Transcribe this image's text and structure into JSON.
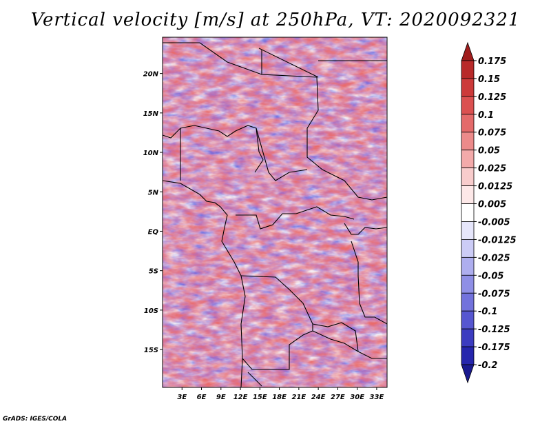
{
  "title": "Vertical velocity [m/s] at 250hPa, VT: 2020092321",
  "credit": "GrADS: IGES/COLA",
  "map": {
    "lat_labels": [
      "20N",
      "15N",
      "10N",
      "5N",
      "EQ",
      "5S",
      "10S",
      "15S"
    ],
    "lat_values": [
      20,
      15,
      10,
      5,
      0,
      -5,
      -10,
      -15
    ],
    "lon_labels": [
      "3E",
      "6E",
      "9E",
      "12E",
      "15E",
      "18E",
      "21E",
      "24E",
      "27E",
      "30E",
      "33E"
    ],
    "lon_values": [
      3,
      6,
      9,
      12,
      15,
      18,
      21,
      24,
      27,
      30,
      33
    ],
    "lat_range": [
      -19.8,
      24.6
    ],
    "lon_range": [
      0,
      34.6
    ]
  },
  "colorbar": {
    "levels": [
      "0.175",
      "0.15",
      "0.125",
      "0.1",
      "0.075",
      "0.05",
      "0.025",
      "0.0125",
      "0.005",
      "-0.005",
      "-0.0125",
      "-0.025",
      "-0.05",
      "-0.075",
      "-0.1",
      "-0.125",
      "-0.175",
      "-0.2"
    ],
    "colors": [
      "#a01d1d",
      "#b82a2a",
      "#cc3a3a",
      "#db5050",
      "#e46a6a",
      "#ec8a8a",
      "#f3aaaa",
      "#f8cccc",
      "#fde8e8",
      "#ffffff",
      "#e6e6fb",
      "#ccccf6",
      "#aeaeef",
      "#8f8fe6",
      "#7272dc",
      "#5656d0",
      "#3c3cc0",
      "#2626ad",
      "#1a1a90"
    ]
  }
}
